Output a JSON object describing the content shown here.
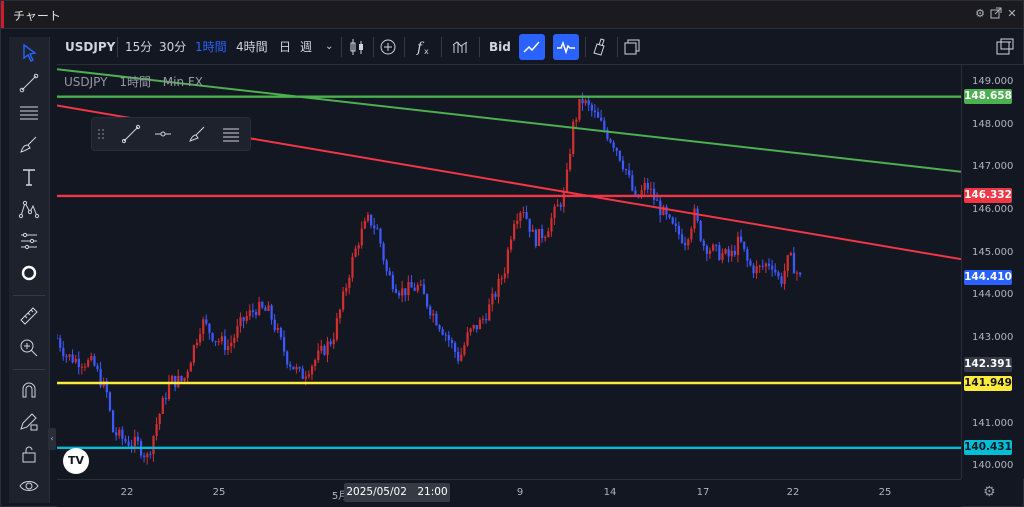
{
  "window": {
    "title": "チャート",
    "controls": [
      "gear-icon",
      "popout-icon",
      "maximize-icon",
      "close-icon"
    ]
  },
  "toolbar": {
    "symbol": "USDJPY",
    "intervals": [
      "15分",
      "30分",
      "1時間",
      "4時間",
      "日",
      "週"
    ],
    "active_interval": "1時間",
    "price_type": "Bid",
    "icons": [
      "candles-icon",
      "add-compare-icon",
      "indicators-icon",
      "templates-icon",
      "trend-line-mode-icon",
      "wave-mode-icon",
      "clean-icon",
      "layout-icon",
      "layout-switch-icon"
    ]
  },
  "left_tools": [
    "cursor-icon",
    "trend-line-icon",
    "fib-icon",
    "brush-icon",
    "text-icon",
    "pattern-icon",
    "prediction-icon",
    "circle-icon",
    "ruler-icon",
    "zoom-icon",
    "magnet-icon",
    "lock-drawing-icon",
    "lock-icon",
    "eye-icon"
  ],
  "legend": {
    "symbol": "USDJPY",
    "interval": "1時間",
    "source": "Min FX"
  },
  "floating_toolbar": [
    "drag-handle-icon",
    "line-tool-icon",
    "horizontal-ray-icon",
    "brush-tool-icon",
    "fib-tool-icon"
  ],
  "logo": "TV",
  "price_axis": {
    "labels": [
      "149.000",
      "148.000",
      "147.000",
      "146.000",
      "145.000",
      "144.000",
      "143.000",
      "141.000",
      "140.000"
    ],
    "tags": [
      {
        "value": "148.658",
        "color": "#4caf50",
        "text_color": "#ffffff"
      },
      {
        "value": "146.332",
        "color": "#f23645",
        "text_color": "#ffffff"
      },
      {
        "value": "144.410",
        "color": "#2962ff",
        "text_color": "#ffffff"
      },
      {
        "value": "142.391",
        "color": "#363a45",
        "text_color": "#ffffff"
      },
      {
        "value": "141.949",
        "color": "#ffeb3b",
        "text_color": "#131722"
      },
      {
        "value": "140.431",
        "color": "#00bcd4",
        "text_color": "#131722"
      }
    ]
  },
  "time_axis": {
    "labels": [
      "22",
      "25",
      "5月",
      "9",
      "14",
      "17",
      "22",
      "25"
    ],
    "crosshair": "2025/05/02　21:00"
  },
  "chart_data": {
    "type": "candlestick",
    "symbol": "USDJPY",
    "ylim": [
      139.7,
      149.4
    ],
    "x_ticks": [
      "22",
      "25",
      "5月",
      "9",
      "14",
      "17",
      "22",
      "25"
    ],
    "horizontal_lines": [
      {
        "value": 148.658,
        "color": "#4caf50"
      },
      {
        "value": 146.332,
        "color": "#f23645"
      },
      {
        "value": 141.949,
        "color": "#ffeb3b"
      },
      {
        "value": 140.431,
        "color": "#00bcd4"
      }
    ],
    "trend_lines": [
      {
        "color": "#4caf50",
        "from": 149.3,
        "to": 146.9
      },
      {
        "color": "#f23645",
        "from": 148.45,
        "to": 144.85
      }
    ],
    "last_price": 144.41,
    "crosshair_price": 142.391,
    "price_path": [
      [
        0.0,
        143.0
      ],
      [
        0.01,
        142.6
      ],
      [
        0.02,
        142.5
      ],
      [
        0.04,
        142.4
      ],
      [
        0.055,
        141.7
      ],
      [
        0.062,
        140.8
      ],
      [
        0.075,
        140.6
      ],
      [
        0.09,
        140.5
      ],
      [
        0.1,
        140.2
      ],
      [
        0.11,
        141.0
      ],
      [
        0.125,
        142.0
      ],
      [
        0.14,
        142.0
      ],
      [
        0.15,
        142.7
      ],
      [
        0.16,
        143.4
      ],
      [
        0.175,
        143.0
      ],
      [
        0.19,
        142.8
      ],
      [
        0.205,
        143.4
      ],
      [
        0.22,
        143.7
      ],
      [
        0.235,
        143.6
      ],
      [
        0.255,
        142.5
      ],
      [
        0.27,
        142.1
      ],
      [
        0.29,
        142.6
      ],
      [
        0.305,
        143.0
      ],
      [
        0.315,
        143.8
      ],
      [
        0.325,
        144.7
      ],
      [
        0.335,
        145.4
      ],
      [
        0.345,
        145.8
      ],
      [
        0.355,
        145.5
      ],
      [
        0.365,
        144.5
      ],
      [
        0.38,
        144.1
      ],
      [
        0.4,
        144.2
      ],
      [
        0.415,
        143.6
      ],
      [
        0.43,
        143.1
      ],
      [
        0.445,
        142.5
      ],
      [
        0.455,
        143.1
      ],
      [
        0.47,
        143.4
      ],
      [
        0.48,
        143.8
      ],
      [
        0.495,
        144.6
      ],
      [
        0.505,
        145.8
      ],
      [
        0.515,
        146.1
      ],
      [
        0.528,
        145.3
      ],
      [
        0.54,
        145.5
      ],
      [
        0.552,
        146.0
      ],
      [
        0.562,
        146.4
      ],
      [
        0.57,
        147.9
      ],
      [
        0.58,
        148.6
      ],
      [
        0.592,
        148.3
      ],
      [
        0.605,
        147.9
      ],
      [
        0.618,
        147.5
      ],
      [
        0.63,
        146.9
      ],
      [
        0.64,
        146.2
      ],
      [
        0.652,
        146.6
      ],
      [
        0.665,
        146.1
      ],
      [
        0.68,
        145.6
      ],
      [
        0.695,
        145.3
      ],
      [
        0.705,
        145.9
      ],
      [
        0.715,
        145.2
      ],
      [
        0.73,
        145.0
      ],
      [
        0.745,
        144.9
      ],
      [
        0.755,
        145.3
      ],
      [
        0.765,
        144.7
      ],
      [
        0.775,
        144.6
      ],
      [
        0.79,
        144.8
      ],
      [
        0.8,
        144.3
      ],
      [
        0.81,
        144.9
      ],
      [
        0.822,
        144.4
      ]
    ]
  }
}
